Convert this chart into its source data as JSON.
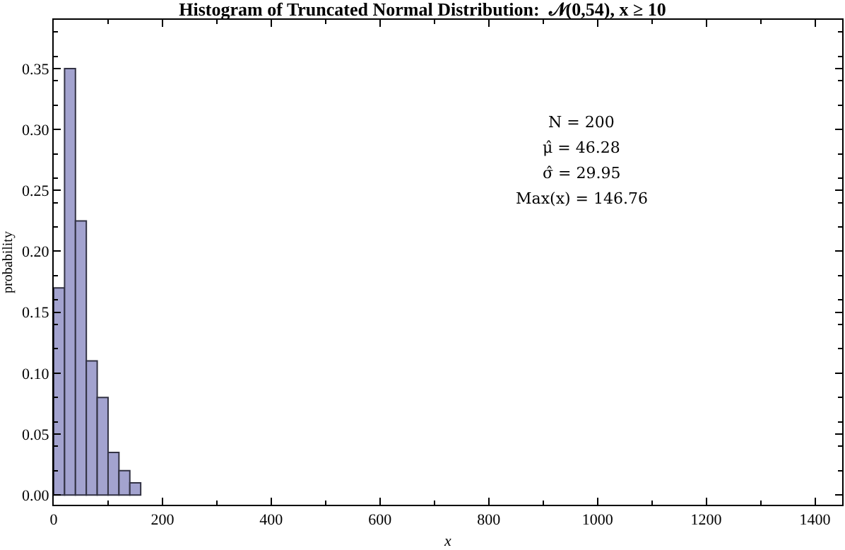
{
  "chart_data": {
    "type": "histogram",
    "title": "Histogram of Truncated Normal Distribution:  𝒩(0,54), x ≥ 10",
    "xlabel": "x",
    "ylabel": "probability",
    "bins": [
      0,
      20,
      40,
      60,
      80,
      100,
      120,
      140,
      160
    ],
    "values": [
      0.17,
      0.35,
      0.225,
      0.11,
      0.08,
      0.035,
      0.02,
      0.01
    ],
    "color": "#a3a3cf",
    "xlim": [
      0,
      1450
    ],
    "xticks": [
      0,
      200,
      400,
      600,
      800,
      1000,
      1200,
      1400
    ],
    "ylim": [
      -0.008,
      0.39
    ],
    "yticks": [
      {
        "value": 0,
        "label": "0.00"
      },
      {
        "value": 0.05,
        "label": "0.05"
      },
      {
        "value": 0.1,
        "label": "0.10"
      },
      {
        "value": 0.15,
        "label": "0.15"
      },
      {
        "value": 0.2,
        "label": "0.20"
      },
      {
        "value": 0.25,
        "label": "0.25"
      },
      {
        "value": 0.3,
        "label": "0.30"
      },
      {
        "value": 0.35,
        "label": "0.35"
      }
    ],
    "grid": false,
    "annotations": [
      "N = 200",
      "μ̂ = 46.28",
      "σ̂ = 29.95",
      "Max(x) = 146.76"
    ]
  }
}
